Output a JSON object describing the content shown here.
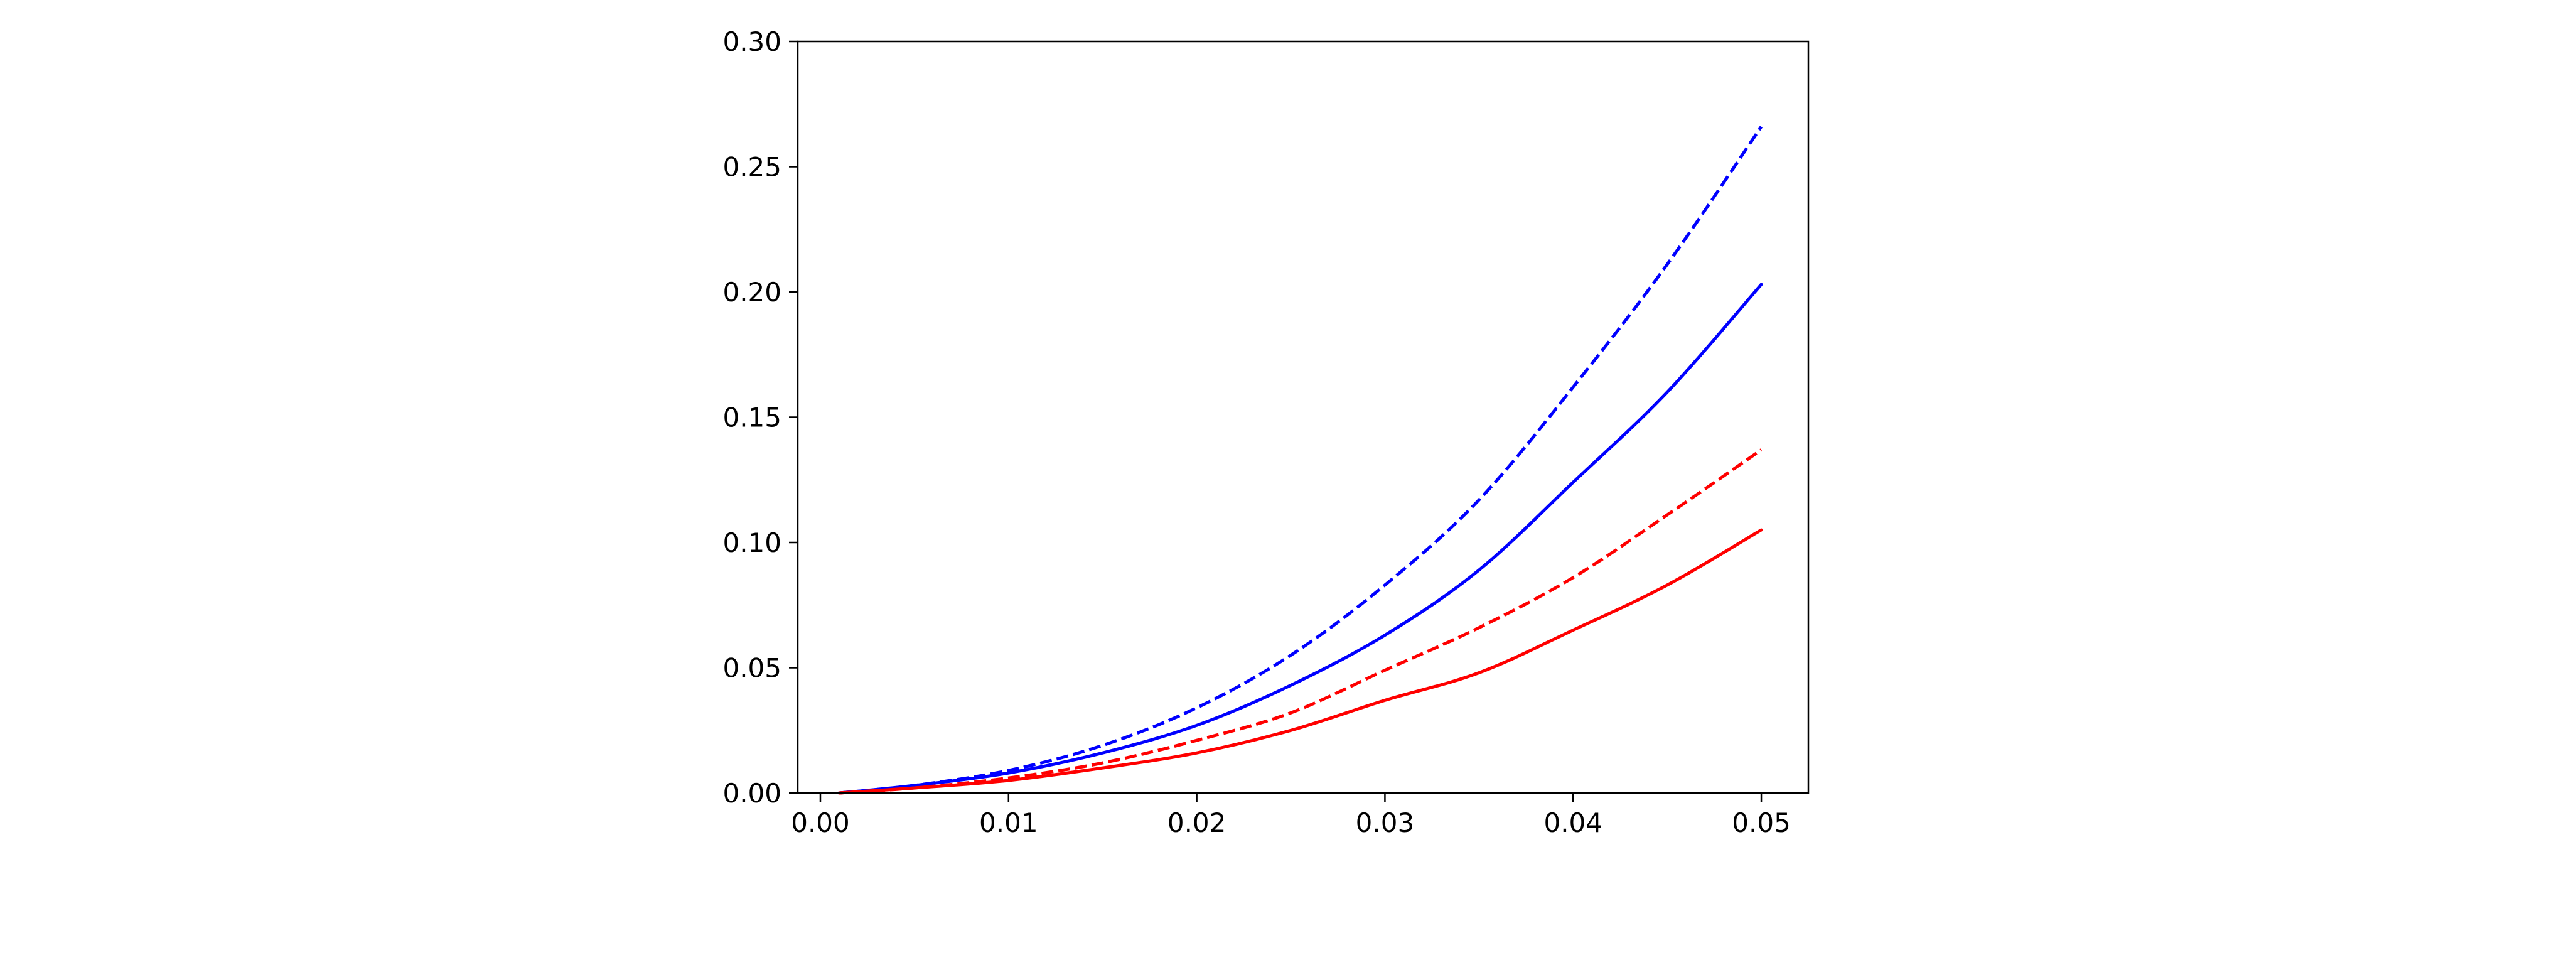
{
  "chart_data": {
    "type": "line",
    "title": "",
    "xlabel": "",
    "ylabel": "",
    "xlim": [
      -0.0012,
      0.0525
    ],
    "ylim": [
      0,
      0.3
    ],
    "grid": false,
    "legend": "none",
    "x_ticks": [
      0.0,
      0.01,
      0.02,
      0.03,
      0.04,
      0.05
    ],
    "x_tick_labels": [
      "0.00",
      "0.01",
      "0.02",
      "0.03",
      "0.04",
      "0.05"
    ],
    "y_ticks": [
      0.0,
      0.05,
      0.1,
      0.15,
      0.2,
      0.25,
      0.3
    ],
    "y_tick_labels": [
      "0.00",
      "0.05",
      "0.10",
      "0.15",
      "0.20",
      "0.25",
      "0.30"
    ],
    "x": [
      0.001,
      0.005,
      0.01,
      0.015,
      0.02,
      0.025,
      0.03,
      0.035,
      0.04,
      0.045,
      0.05
    ],
    "series": [
      {
        "color": "#0000ff",
        "line_style": "dashed",
        "values": [
          0.0,
          0.003,
          0.009,
          0.019,
          0.034,
          0.055,
          0.083,
          0.117,
          0.162,
          0.211,
          0.266
        ]
      },
      {
        "color": "#0000ff",
        "line_style": "solid",
        "values": [
          0.0,
          0.003,
          0.008,
          0.016,
          0.027,
          0.043,
          0.063,
          0.089,
          0.124,
          0.16,
          0.203
        ]
      },
      {
        "color": "#ff0000",
        "line_style": "dashed",
        "values": [
          0.0,
          0.002,
          0.006,
          0.012,
          0.021,
          0.032,
          0.049,
          0.066,
          0.086,
          0.111,
          0.137
        ]
      },
      {
        "color": "#ff0000",
        "line_style": "solid",
        "values": [
          0.0,
          0.002,
          0.005,
          0.01,
          0.016,
          0.025,
          0.037,
          0.048,
          0.065,
          0.083,
          0.105
        ]
      }
    ]
  }
}
